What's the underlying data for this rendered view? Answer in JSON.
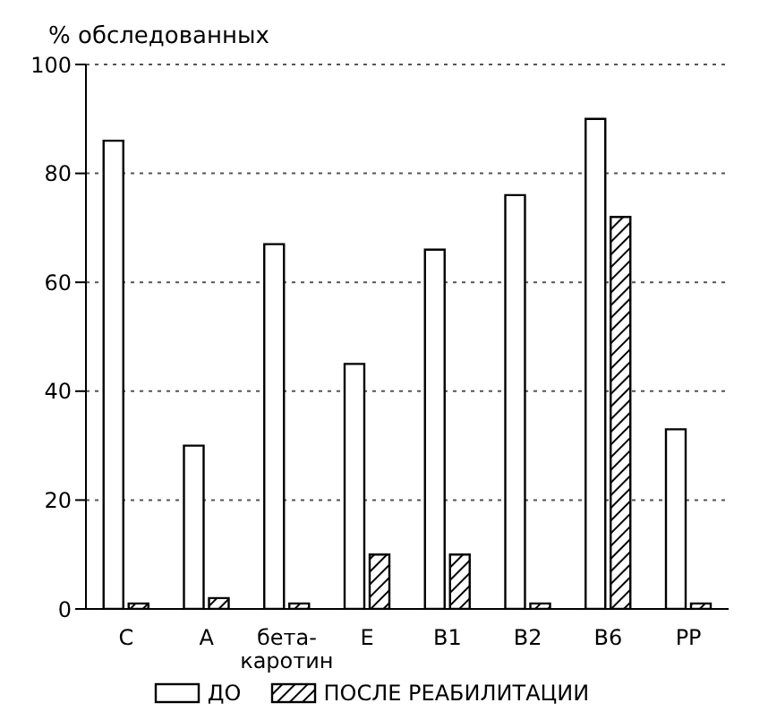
{
  "chart_data": {
    "type": "bar",
    "ylabel": "% обследованных",
    "categories": [
      "C",
      "A",
      "бета-каротин",
      "E",
      "B1",
      "B2",
      "B6",
      "PP"
    ],
    "series": [
      {
        "name": "ДО",
        "color": "#ffffff",
        "values": [
          86,
          30,
          67,
          45,
          66,
          76,
          90,
          33
        ]
      },
      {
        "name": "ПОСЛЕ РЕАБИЛИТАЦИИ",
        "color": "#000000",
        "values": [
          1,
          2,
          1,
          10,
          10,
          1,
          72,
          1
        ]
      }
    ],
    "ylim": [
      0,
      100
    ],
    "yticks": [
      0,
      20,
      40,
      60,
      80,
      100
    ],
    "grid": "y",
    "legend": "bottom"
  }
}
